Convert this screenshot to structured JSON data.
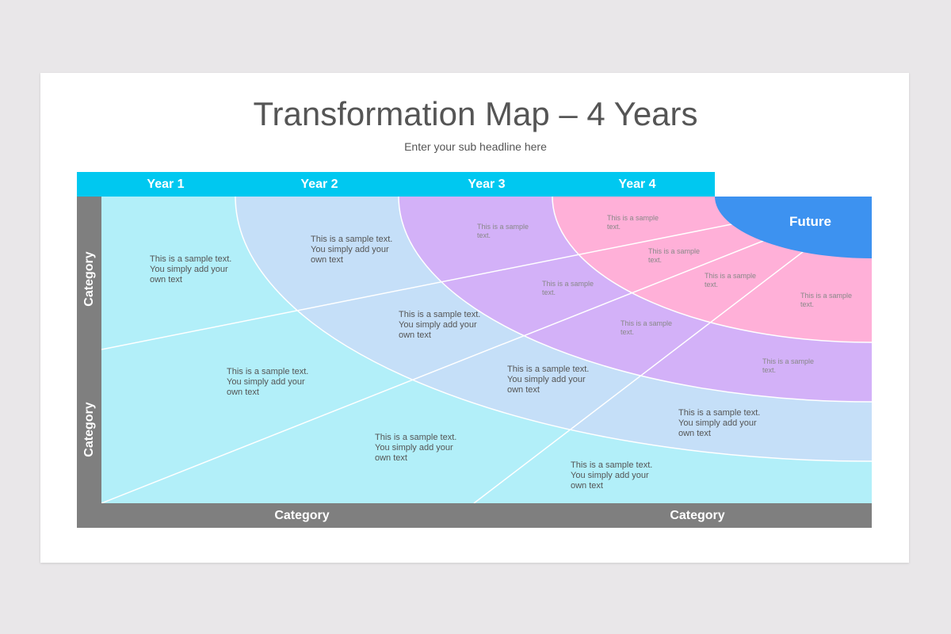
{
  "title": "Transformation Map – 4 Years",
  "subtitle": "Enter your sub headline here",
  "years": [
    "Year 1",
    "Year 2",
    "Year 3",
    "Year 4"
  ],
  "future": "Future",
  "categories": {
    "left_top": "Category",
    "left_bottom": "Category",
    "bottom_left": "Category",
    "bottom_right": "Category"
  },
  "long_texts": [
    "This is a sample text. You simply add your own text",
    "This is a sample text. You simply add your own text",
    "This is a sample text. You simply add your own text",
    "This is a sample text. You simply add your own text",
    "This is a sample text. You simply add your own text",
    "This is a sample text. You simply add your own text",
    "This is a sample text. You simply add your own text",
    "This is a sample text. You simply add your own text"
  ],
  "short_texts": [
    "This is a sample text.",
    "This is a sample text.",
    "This is a sample text.",
    "This is a sample text.",
    "This is a sample text.",
    "This is a sample text.",
    "This is a sample text.",
    "This is a sample text."
  ],
  "colors": {
    "year_bar": "#00c8f0",
    "axis_bar": "#7f7f7f",
    "year1": "#b2eff9",
    "year2": "#c5dff8",
    "year3": "#d3b1f8",
    "year4": "#ffb0d8",
    "future": "#3d92f0"
  }
}
